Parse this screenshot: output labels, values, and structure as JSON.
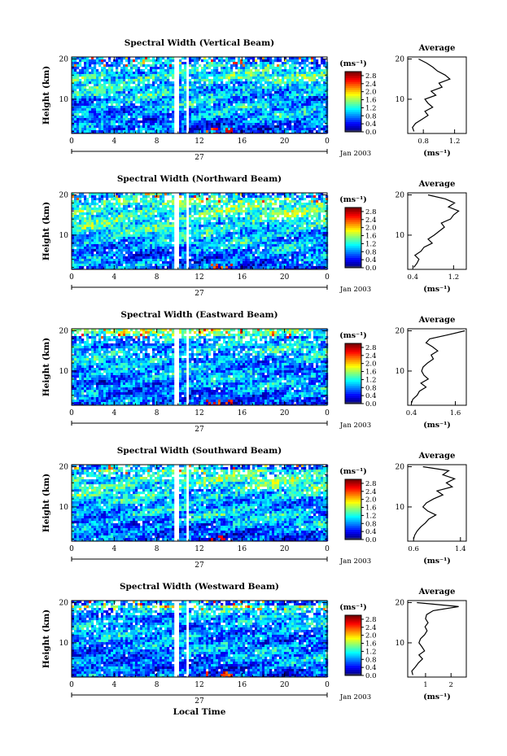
{
  "figure": {
    "ylabel": "Height (km)",
    "xlabel": "Local Time",
    "colorbar_unit": "(ms⁻¹)",
    "colorbar_ticks": [
      "0.0",
      "0.4",
      "0.8",
      "1.2",
      "1.6",
      "2.0",
      "2.4",
      "2.8"
    ],
    "date_label": "27",
    "month_label": "Jan 2003",
    "x_ticks": [
      "0",
      "4",
      "8",
      "12",
      "16",
      "20",
      "0"
    ],
    "y_ticks": [
      "20",
      "10"
    ],
    "avg_title": "Average",
    "avg_xlabel": "(ms⁻¹)"
  },
  "chart_data": [
    {
      "type": "heatmap",
      "title": "Spectral Width (Vertical Beam)",
      "xlabel": "Local Time",
      "ylabel": "Height (km)",
      "xlim": [
        0,
        24
      ],
      "ylim": [
        1.5,
        20.5
      ],
      "zlim": [
        0.0,
        3.0
      ],
      "colorbar_label": "(ms⁻¹)",
      "data_gaps_hours": [
        [
          9.6,
          10.0
        ],
        [
          10.7,
          11.0
        ]
      ],
      "average_profile": {
        "title": "Average",
        "xlabel": "(ms⁻¹)",
        "x_ticks": [
          "0.8",
          "1.2"
        ],
        "xlim": [
          0.6,
          1.35
        ],
        "heights": [
          2,
          3,
          4,
          5,
          6,
          7,
          8,
          9,
          10,
          11,
          12,
          13,
          14,
          15,
          16,
          17,
          18,
          19,
          20
        ],
        "values": [
          0.68,
          0.66,
          0.7,
          0.78,
          0.86,
          0.82,
          0.92,
          0.86,
          0.82,
          0.96,
          0.9,
          1.04,
          1.0,
          1.14,
          1.08,
          0.98,
          0.92,
          0.84,
          0.74
        ]
      }
    },
    {
      "type": "heatmap",
      "title": "Spectral Width (Northward Beam)",
      "xlabel": "Local Time",
      "ylabel": "Height (km)",
      "xlim": [
        0,
        24
      ],
      "ylim": [
        1.5,
        20.5
      ],
      "zlim": [
        0.0,
        3.0
      ],
      "colorbar_label": "(ms⁻¹)",
      "data_gaps_hours": [
        [
          9.6,
          10.0
        ],
        [
          10.7,
          11.0
        ]
      ],
      "average_profile": {
        "title": "Average",
        "xlabel": "(ms⁻¹)",
        "x_ticks": [
          "0.4",
          "1.2"
        ],
        "xlim": [
          0.3,
          1.45
        ],
        "heights": [
          2,
          3,
          4,
          5,
          6,
          7,
          8,
          9,
          10,
          11,
          12,
          13,
          14,
          15,
          16,
          17,
          18,
          19,
          20
        ],
        "values": [
          0.42,
          0.48,
          0.52,
          0.44,
          0.56,
          0.62,
          0.78,
          0.7,
          0.82,
          0.92,
          1.02,
          0.96,
          1.14,
          1.2,
          1.3,
          1.1,
          1.22,
          1.04,
          0.7
        ]
      }
    },
    {
      "type": "heatmap",
      "title": "Spectral Width (Eastward Beam)",
      "xlabel": "Local Time",
      "ylabel": "Height (km)",
      "xlim": [
        0,
        24
      ],
      "ylim": [
        1.5,
        20.5
      ],
      "zlim": [
        0.0,
        3.0
      ],
      "colorbar_label": "(ms⁻¹)",
      "data_gaps_hours": [
        [
          9.6,
          10.0
        ],
        [
          10.7,
          11.0
        ]
      ],
      "average_profile": {
        "title": "Average",
        "xlabel": "(ms⁻¹)",
        "x_ticks": [
          "0.4",
          "1.6"
        ],
        "xlim": [
          0.3,
          1.9
        ],
        "heights": [
          2,
          3,
          4,
          5,
          6,
          7,
          8,
          9,
          10,
          11,
          12,
          13,
          14,
          15,
          16,
          17,
          18,
          19,
          20
        ],
        "values": [
          0.4,
          0.44,
          0.56,
          0.62,
          0.8,
          0.66,
          0.86,
          0.74,
          0.68,
          0.72,
          0.84,
          1.0,
          0.94,
          1.12,
          0.98,
          0.8,
          0.9,
          1.4,
          1.86
        ]
      }
    },
    {
      "type": "heatmap",
      "title": "Spectral Width (Southward Beam)",
      "xlabel": "Local Time",
      "ylabel": "Height (km)",
      "xlim": [
        0,
        24
      ],
      "ylim": [
        1.5,
        20.5
      ],
      "zlim": [
        0.0,
        3.0
      ],
      "colorbar_label": "(ms⁻¹)",
      "data_gaps_hours": [
        [
          9.6,
          10.0
        ],
        [
          10.7,
          11.0
        ]
      ],
      "average_profile": {
        "title": "Average",
        "xlabel": "(ms⁻¹)",
        "x_ticks": [
          "0.6",
          "1.4"
        ],
        "xlim": [
          0.5,
          1.5
        ],
        "heights": [
          2,
          3,
          4,
          5,
          6,
          7,
          8,
          9,
          10,
          11,
          12,
          13,
          14,
          15,
          16,
          17,
          18,
          19,
          20
        ],
        "values": [
          0.6,
          0.62,
          0.66,
          0.72,
          0.8,
          0.86,
          0.98,
          0.84,
          0.76,
          0.82,
          0.94,
          1.1,
          1.0,
          1.26,
          1.16,
          1.3,
          1.1,
          1.2,
          0.76
        ]
      }
    },
    {
      "type": "heatmap",
      "title": "Spectral Width (Westward Beam)",
      "xlabel": "Local Time",
      "ylabel": "Height (km)",
      "xlim": [
        0,
        24
      ],
      "ylim": [
        1.5,
        20.5
      ],
      "zlim": [
        0.0,
        3.0
      ],
      "colorbar_label": "(ms⁻¹)",
      "data_gaps_hours": [
        [
          9.6,
          10.0
        ],
        [
          10.7,
          11.0
        ]
      ],
      "average_profile": {
        "title": "Average",
        "xlabel": "(ms⁻¹)",
        "x_ticks": [
          "1",
          "2"
        ],
        "xlim": [
          0.3,
          2.6
        ],
        "heights": [
          2,
          3,
          4,
          5,
          6,
          7,
          8,
          9,
          10,
          11,
          12,
          13,
          14,
          15,
          16,
          17,
          18,
          19,
          20
        ],
        "values": [
          0.5,
          0.46,
          0.6,
          0.72,
          0.88,
          0.74,
          0.96,
          0.86,
          0.74,
          0.8,
          0.96,
          1.06,
          0.98,
          1.1,
          1.0,
          1.04,
          1.3,
          2.3,
          0.66
        ]
      }
    }
  ]
}
